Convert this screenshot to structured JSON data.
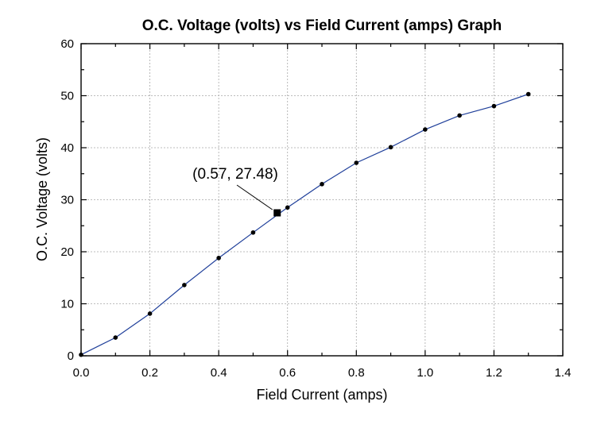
{
  "chart_data": {
    "type": "line",
    "title": "O.C. Voltage (volts) vs Field Current (amps) Graph",
    "xlabel": "Field Current (amps)",
    "ylabel": "O.C. Voltage (volts)",
    "xlim": [
      0,
      1.4
    ],
    "ylim": [
      0,
      60
    ],
    "x_ticks": [
      "0.0",
      "0.2",
      "0.4",
      "0.6",
      "0.8",
      "1.0",
      "1.2",
      "1.4"
    ],
    "y_ticks": [
      "0",
      "10",
      "20",
      "30",
      "40",
      "50",
      "60"
    ],
    "grid": true,
    "series": [
      {
        "x": [
          0.0,
          0.1,
          0.2,
          0.3,
          0.4,
          0.5,
          0.6,
          0.7,
          0.8,
          0.9,
          1.0,
          1.1,
          1.2,
          1.3
        ],
        "y": [
          0.2,
          3.5,
          8.1,
          13.6,
          18.8,
          23.7,
          28.5,
          33.0,
          37.1,
          40.1,
          43.5,
          46.2,
          48.0,
          50.3
        ]
      }
    ],
    "annotation": {
      "x": 0.57,
      "y": 27.48,
      "label": "(0.57, 27.48)"
    },
    "colors": {
      "line": "#1f3f9a",
      "points": "#000000",
      "grid": "#a8a8a8"
    }
  }
}
